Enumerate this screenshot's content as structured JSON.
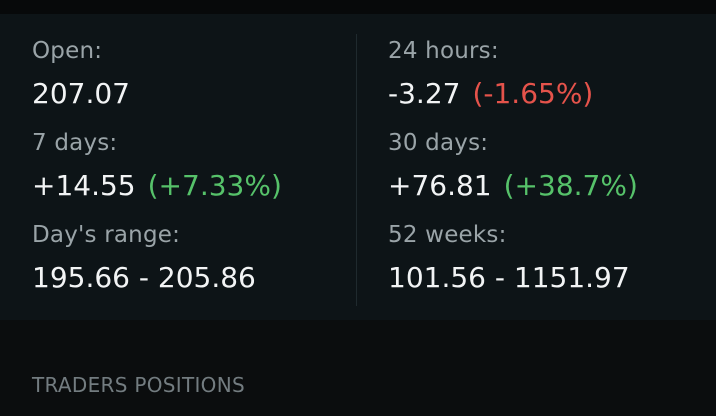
{
  "stats": {
    "open": {
      "label": "Open:",
      "value": "207.07"
    },
    "hours24": {
      "label": "24 hours:",
      "value": "-3.27",
      "change": "(-1.65%)"
    },
    "days7": {
      "label": "7 days:",
      "value": "+14.55",
      "change": "(+7.33%)"
    },
    "days30": {
      "label": "30 days:",
      "value": "+76.81",
      "change": "(+38.7%)"
    },
    "days_range": {
      "label": "Day's range:",
      "value": "195.66 - 205.86"
    },
    "weeks52": {
      "label": "52 weeks:",
      "value": "101.56 - 1151.97"
    }
  },
  "section": {
    "title": "TRADERS POSITIONS"
  },
  "colors": {
    "negative": "#e5534b",
    "positive": "#56c26a",
    "panel": "#0d1417",
    "background": "#0b0d0e"
  }
}
